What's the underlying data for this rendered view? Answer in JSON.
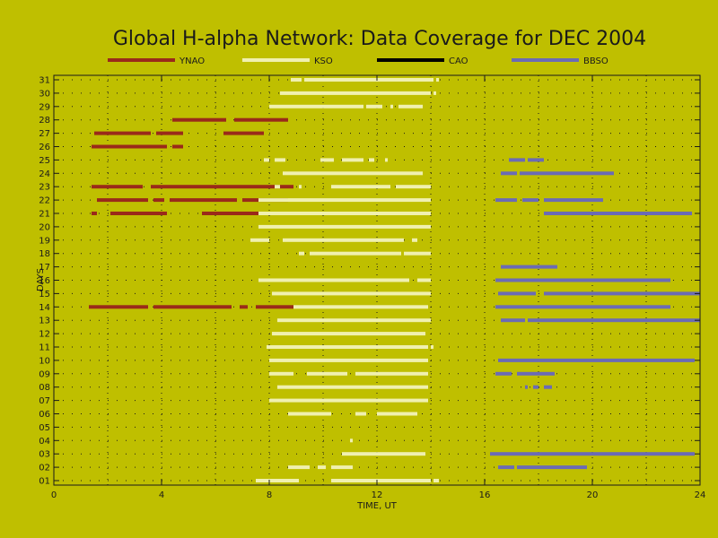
{
  "chart_data": {
    "type": "bar",
    "title": "Global H-alpha Network: Data Coverage for DEC 2004",
    "xlabel": "TIME, UT",
    "ylabel": "DAYS",
    "xlim": [
      0,
      24
    ],
    "xticks": [
      "0",
      "4",
      "8",
      "12",
      "16",
      "20",
      "24"
    ],
    "xtick_values": [
      0,
      4,
      8,
      12,
      16,
      20,
      24
    ],
    "ylim": [
      1,
      31
    ],
    "yticks": [
      "01",
      "02",
      "03",
      "04",
      "05",
      "06",
      "07",
      "08",
      "09",
      "10",
      "11",
      "12",
      "13",
      "14",
      "15",
      "16",
      "17",
      "18",
      "19",
      "20",
      "21",
      "22",
      "23",
      "24",
      "25",
      "26",
      "27",
      "28",
      "29",
      "30",
      "31"
    ],
    "grid": true,
    "legend_position": "top",
    "series": [
      {
        "name": "YNAO",
        "color": "#9a2a1a",
        "segments": [
          {
            "day": 28,
            "intervals": [
              [
                4.4,
                6.4
              ],
              [
                6.7,
                8.7
              ]
            ]
          },
          {
            "day": 27,
            "intervals": [
              [
                1.5,
                3.6
              ],
              [
                3.8,
                4.8
              ],
              [
                6.3,
                7.8
              ]
            ]
          },
          {
            "day": 26,
            "intervals": [
              [
                1.4,
                4.2
              ],
              [
                4.4,
                4.8
              ]
            ]
          },
          {
            "day": 23,
            "intervals": [
              [
                1.4,
                3.3
              ],
              [
                3.6,
                6.2
              ],
              [
                6.2,
                8.9
              ]
            ]
          },
          {
            "day": 22,
            "intervals": [
              [
                1.6,
                3.5
              ],
              [
                3.7,
                4.1
              ],
              [
                4.3,
                6.8
              ],
              [
                7.0,
                8.7
              ]
            ]
          },
          {
            "day": 21,
            "intervals": [
              [
                1.4,
                1.6
              ],
              [
                2.1,
                4.2
              ],
              [
                5.5,
                8.5
              ]
            ]
          },
          {
            "day": 14,
            "intervals": [
              [
                1.3,
                3.5
              ],
              [
                3.7,
                6.6
              ],
              [
                6.9,
                7.2
              ],
              [
                7.5,
                8.9
              ]
            ]
          }
        ]
      },
      {
        "name": "KSO",
        "color": "#f0f0b0",
        "segments": [
          {
            "day": 31,
            "intervals": [
              [
                8.8,
                9.2
              ],
              [
                9.3,
                14.1
              ],
              [
                14.2,
                14.3
              ]
            ]
          },
          {
            "day": 30,
            "intervals": [
              [
                8.4,
                14.0
              ],
              [
                14.1,
                14.2
              ]
            ]
          },
          {
            "day": 29,
            "intervals": [
              [
                8.0,
                11.5
              ],
              [
                11.6,
                12.2
              ],
              [
                12.5,
                12.6
              ],
              [
                12.8,
                13.7
              ]
            ]
          },
          {
            "day": 25,
            "intervals": [
              [
                7.8,
                8.0
              ],
              [
                8.2,
                8.6
              ],
              [
                9.9,
                10.4
              ],
              [
                10.7,
                11.5
              ],
              [
                11.7,
                11.9
              ],
              [
                12.3,
                12.4
              ]
            ]
          },
          {
            "day": 24,
            "intervals": [
              [
                8.5,
                13.7
              ]
            ]
          },
          {
            "day": 23,
            "intervals": [
              [
                8.2,
                8.4
              ],
              [
                9.1,
                9.2
              ],
              [
                10.3,
                12.5
              ],
              [
                12.7,
                14.0
              ]
            ]
          },
          {
            "day": 22,
            "intervals": [
              [
                7.6,
                14.0
              ]
            ]
          },
          {
            "day": 21,
            "intervals": [
              [
                7.6,
                14.0
              ]
            ]
          },
          {
            "day": 20,
            "intervals": [
              [
                7.6,
                14.0
              ]
            ]
          },
          {
            "day": 19,
            "intervals": [
              [
                7.3,
                8.0
              ],
              [
                8.5,
                13.0
              ],
              [
                13.3,
                13.5
              ]
            ]
          },
          {
            "day": 18,
            "intervals": [
              [
                9.1,
                9.3
              ],
              [
                9.5,
                12.9
              ],
              [
                13.0,
                14.0
              ]
            ]
          },
          {
            "day": 16,
            "intervals": [
              [
                7.6,
                13.2
              ],
              [
                13.5,
                14.0
              ]
            ]
          },
          {
            "day": 15,
            "intervals": [
              [
                8.1,
                14.0
              ]
            ]
          },
          {
            "day": 14,
            "intervals": [
              [
                8.9,
                13.9
              ]
            ]
          },
          {
            "day": 13,
            "intervals": [
              [
                8.3,
                14.0
              ]
            ]
          },
          {
            "day": 12,
            "intervals": [
              [
                8.1,
                13.8
              ]
            ]
          },
          {
            "day": 11,
            "intervals": [
              [
                7.9,
                13.9
              ],
              [
                14.0,
                14.1
              ]
            ]
          },
          {
            "day": 10,
            "intervals": [
              [
                8.0,
                13.9
              ]
            ]
          },
          {
            "day": 9,
            "intervals": [
              [
                8.0,
                8.9
              ],
              [
                9.4,
                10.9
              ],
              [
                11.2,
                13.9
              ]
            ]
          },
          {
            "day": 8,
            "intervals": [
              [
                8.3,
                13.9
              ]
            ]
          },
          {
            "day": 7,
            "intervals": [
              [
                8.0,
                13.9
              ]
            ]
          },
          {
            "day": 6,
            "intervals": [
              [
                8.7,
                10.3
              ],
              [
                11.2,
                11.6
              ],
              [
                12.0,
                13.5
              ]
            ]
          },
          {
            "day": 4,
            "intervals": [
              [
                11.0,
                11.1
              ]
            ]
          },
          {
            "day": 3,
            "intervals": [
              [
                10.7,
                13.8
              ]
            ]
          },
          {
            "day": 2,
            "intervals": [
              [
                8.7,
                9.5
              ],
              [
                9.8,
                10.1
              ],
              [
                10.3,
                11.1
              ]
            ]
          },
          {
            "day": 1,
            "intervals": [
              [
                7.5,
                9.1
              ],
              [
                10.3,
                14.0
              ],
              [
                14.1,
                14.3
              ]
            ]
          }
        ]
      },
      {
        "name": "CAO",
        "color": "#000000",
        "segments": []
      },
      {
        "name": "BBSO",
        "color": "#6b6bb5",
        "segments": [
          {
            "day": 25,
            "intervals": [
              [
                16.9,
                17.5
              ],
              [
                17.6,
                18.2
              ]
            ]
          },
          {
            "day": 24,
            "intervals": [
              [
                16.6,
                17.2
              ],
              [
                17.3,
                20.8
              ]
            ]
          },
          {
            "day": 22,
            "intervals": [
              [
                16.4,
                17.2
              ],
              [
                17.4,
                18.0
              ],
              [
                18.2,
                20.4
              ]
            ]
          },
          {
            "day": 21,
            "intervals": [
              [
                18.2,
                18.4
              ],
              [
                18.4,
                23.7
              ]
            ]
          },
          {
            "day": 17,
            "intervals": [
              [
                16.6,
                18.7
              ]
            ]
          },
          {
            "day": 16,
            "intervals": [
              [
                16.4,
                22.9
              ]
            ]
          },
          {
            "day": 15,
            "intervals": [
              [
                16.5,
                17.9
              ],
              [
                18.2,
                24.0
              ]
            ]
          },
          {
            "day": 14,
            "intervals": [
              [
                16.4,
                22.9
              ]
            ]
          },
          {
            "day": 13,
            "intervals": [
              [
                16.6,
                17.5
              ],
              [
                17.6,
                24.0
              ]
            ]
          },
          {
            "day": 10,
            "intervals": [
              [
                16.5,
                23.8
              ]
            ]
          },
          {
            "day": 9,
            "intervals": [
              [
                16.4,
                17.0
              ],
              [
                17.2,
                18.6
              ]
            ]
          },
          {
            "day": 8,
            "intervals": [
              [
                17.5,
                17.6
              ],
              [
                17.8,
                18.0
              ],
              [
                18.2,
                18.5
              ]
            ]
          },
          {
            "day": 3,
            "intervals": [
              [
                16.2,
                23.8
              ]
            ]
          },
          {
            "day": 2,
            "intervals": [
              [
                16.5,
                17.1
              ],
              [
                17.2,
                19.8
              ]
            ]
          }
        ]
      }
    ]
  }
}
